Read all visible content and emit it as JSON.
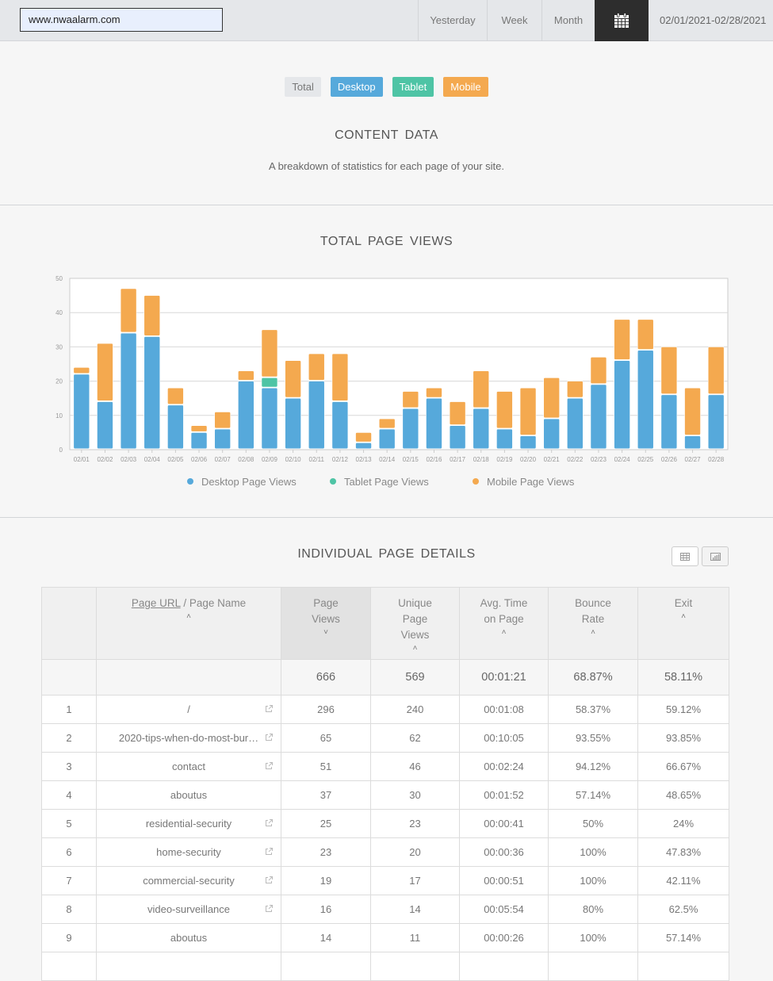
{
  "topbar": {
    "site": "www.nwaalarm.com",
    "ranges": [
      "Yesterday",
      "Week",
      "Month"
    ],
    "calendar_icon": "calendar-icon",
    "date_range": "02/01/2021-02/28/2021"
  },
  "filters": {
    "total": "Total",
    "desktop": "Desktop",
    "tablet": "Tablet",
    "mobile": "Mobile"
  },
  "colors": {
    "desktop": "#56a9db",
    "tablet": "#4ec4a5",
    "mobile": "#f4a94f"
  },
  "content": {
    "title": "CONTENT  DATA",
    "subtitle": "A breakdown of statistics for each page of your site."
  },
  "chart_data": {
    "type": "bar",
    "stacked": true,
    "title": "TOTAL  PAGE  VIEWS",
    "categories": [
      "02/01",
      "02/02",
      "02/03",
      "02/04",
      "02/05",
      "02/06",
      "02/07",
      "02/08",
      "02/09",
      "02/10",
      "02/11",
      "02/12",
      "02/13",
      "02/14",
      "02/15",
      "02/16",
      "02/17",
      "02/18",
      "02/19",
      "02/20",
      "02/21",
      "02/22",
      "02/23",
      "02/24",
      "02/25",
      "02/26",
      "02/27",
      "02/28"
    ],
    "series": [
      {
        "name": "Desktop Page Views",
        "values": [
          22,
          14,
          34,
          33,
          13,
          5,
          6,
          20,
          18,
          15,
          20,
          14,
          2,
          6,
          12,
          15,
          7,
          12,
          6,
          4,
          9,
          15,
          19,
          26,
          29,
          16,
          4,
          16
        ]
      },
      {
        "name": "Tablet Page Views",
        "values": [
          0,
          0,
          0,
          0,
          0,
          0,
          0,
          0,
          3,
          0,
          0,
          0,
          0,
          0,
          0,
          0,
          0,
          0,
          0,
          0,
          0,
          0,
          0,
          0,
          0,
          0,
          0,
          0
        ]
      },
      {
        "name": "Mobile Page Views",
        "values": [
          2,
          17,
          13,
          12,
          5,
          2,
          5,
          3,
          14,
          11,
          8,
          14,
          3,
          3,
          5,
          3,
          7,
          11,
          11,
          14,
          12,
          5,
          8,
          12,
          9,
          14,
          14,
          14
        ]
      }
    ],
    "yticks": [
      0,
      10,
      20,
      30,
      40,
      50
    ],
    "ylim": [
      0,
      50
    ],
    "grid": true,
    "legend": "bottom"
  },
  "details": {
    "title": "INDIVIDUAL  PAGE  DETAILS",
    "table_view_icon": "table-icon",
    "chart_view_icon": "bar-chart-icon",
    "headers": {
      "page_url": "Page URL",
      "page_name": " / Page Name",
      "page_views": [
        "Page",
        "Views"
      ],
      "unique": [
        "Unique",
        "Page",
        "Views"
      ],
      "avg_time": [
        "Avg. Time",
        "on Page"
      ],
      "bounce": [
        "Bounce",
        "Rate"
      ],
      "exit": "Exit"
    },
    "totals": {
      "views": "666",
      "unique": "569",
      "time": "00:01:21",
      "bounce": "68.87%",
      "exit": "58.11%"
    },
    "rows": [
      {
        "n": "1",
        "page": "/",
        "link": true,
        "views": "296",
        "unique": "240",
        "time": "00:01:08",
        "bounce": "58.37%",
        "exit": "59.12%"
      },
      {
        "n": "2",
        "page": "2020-tips-when-do-most-bur…",
        "link": true,
        "views": "65",
        "unique": "62",
        "time": "00:10:05",
        "bounce": "93.55%",
        "exit": "93.85%"
      },
      {
        "n": "3",
        "page": "contact",
        "link": true,
        "views": "51",
        "unique": "46",
        "time": "00:02:24",
        "bounce": "94.12%",
        "exit": "66.67%"
      },
      {
        "n": "4",
        "page": "aboutus",
        "link": false,
        "views": "37",
        "unique": "30",
        "time": "00:01:52",
        "bounce": "57.14%",
        "exit": "48.65%"
      },
      {
        "n": "5",
        "page": "residential-security",
        "link": true,
        "views": "25",
        "unique": "23",
        "time": "00:00:41",
        "bounce": "50%",
        "exit": "24%"
      },
      {
        "n": "6",
        "page": "home-security",
        "link": true,
        "views": "23",
        "unique": "20",
        "time": "00:00:36",
        "bounce": "100%",
        "exit": "47.83%"
      },
      {
        "n": "7",
        "page": "commercial-security",
        "link": true,
        "views": "19",
        "unique": "17",
        "time": "00:00:51",
        "bounce": "100%",
        "exit": "42.11%"
      },
      {
        "n": "8",
        "page": "video-surveillance",
        "link": true,
        "views": "16",
        "unique": "14",
        "time": "00:05:54",
        "bounce": "80%",
        "exit": "62.5%"
      },
      {
        "n": "9",
        "page": "aboutus",
        "link": false,
        "views": "14",
        "unique": "11",
        "time": "00:00:26",
        "bounce": "100%",
        "exit": "57.14%"
      }
    ]
  }
}
